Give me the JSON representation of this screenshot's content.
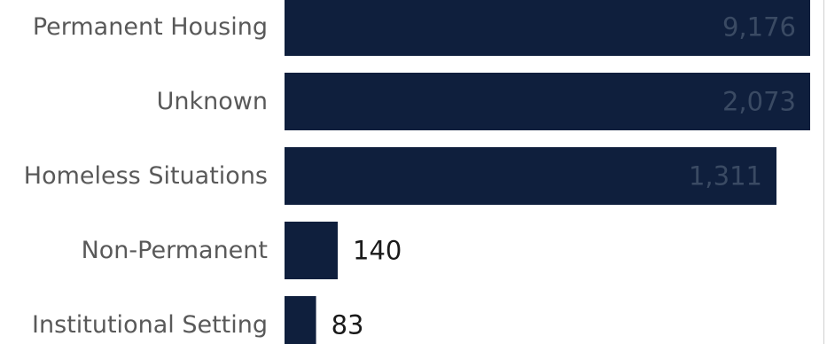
{
  "chart_data": {
    "type": "bar",
    "orientation": "horizontal",
    "categories": [
      "Permanent Housing",
      "Unknown",
      "Homeless Situations",
      "Non-Permanent",
      "Institutional Setting"
    ],
    "values": [
      9176,
      2073,
      1311,
      140,
      83
    ],
    "value_labels": [
      "9,176",
      "2,073",
      "1,311",
      "140",
      "83"
    ],
    "bar_color": "#0f1f3d",
    "axis_break": true,
    "grid": false,
    "legend": "none"
  }
}
